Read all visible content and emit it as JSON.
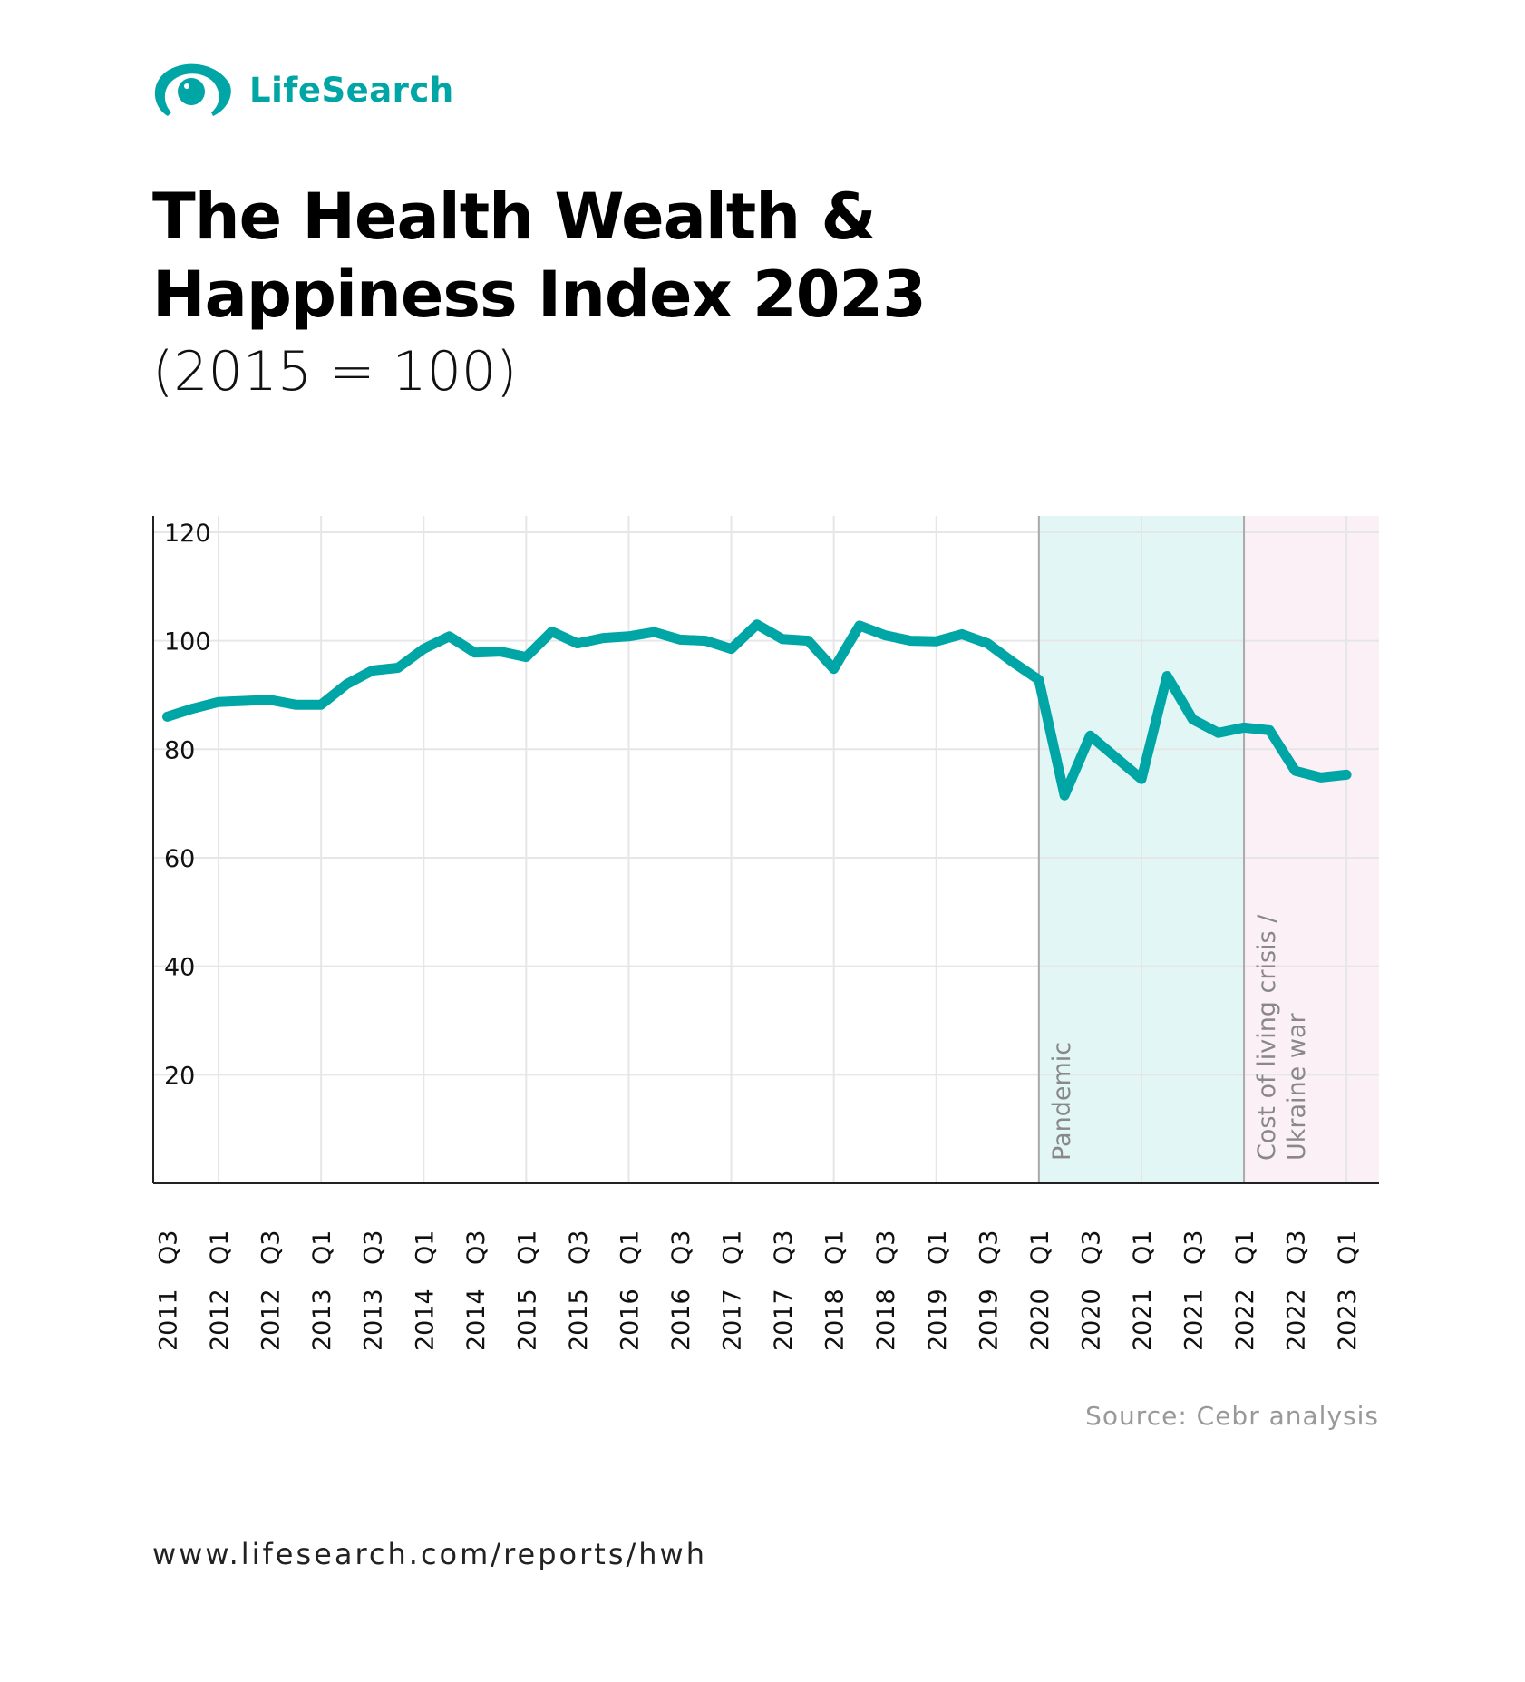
{
  "brand": {
    "name": "LifeSearch",
    "color": "#00a6a6",
    "icon": "eye-logo-icon"
  },
  "title_lines": [
    "The Health Wealth &",
    "Happiness Index 2023"
  ],
  "subtitle": "(2015 = 100)",
  "source": "Source: Cebr analysis",
  "url": "www.lifesearch.com/reports/hwh",
  "chart_data": {
    "type": "line",
    "title": "The Health Wealth & Happiness Index 2023",
    "subtitle": "(2015 = 100)",
    "xlabel": "",
    "ylabel": "",
    "ylim": [
      0,
      123
    ],
    "yticks": [
      20,
      40,
      60,
      80,
      100,
      120
    ],
    "grid": true,
    "line_color": "#00a6a6",
    "x": [
      "2011 Q3",
      "2011 Q4",
      "2012 Q1",
      "2012 Q2",
      "2012 Q3",
      "2012 Q4",
      "2013 Q1",
      "2013 Q2",
      "2013 Q3",
      "2013 Q4",
      "2014 Q1",
      "2014 Q2",
      "2014 Q3",
      "2014 Q4",
      "2015 Q1",
      "2015 Q2",
      "2015 Q3",
      "2015 Q4",
      "2016 Q1",
      "2016 Q2",
      "2016 Q3",
      "2016 Q4",
      "2017 Q1",
      "2017 Q2",
      "2017 Q3",
      "2017 Q4",
      "2018 Q1",
      "2018 Q2",
      "2018 Q3",
      "2018 Q4",
      "2019 Q1",
      "2019 Q2",
      "2019 Q3",
      "2019 Q4",
      "2020 Q1",
      "2020 Q2",
      "2020 Q3",
      "2020 Q4",
      "2021 Q1",
      "2021 Q2",
      "2021 Q3",
      "2021 Q4",
      "2022 Q1",
      "2022 Q2",
      "2022 Q3",
      "2022 Q4",
      "2023 Q1"
    ],
    "values": [
      86,
      87.5,
      88.7,
      88.9,
      89.1,
      88.2,
      88.2,
      92,
      94.5,
      95,
      98.5,
      100.8,
      97.8,
      98,
      97,
      101.7,
      99.5,
      100.5,
      100.8,
      101.6,
      100.2,
      100,
      98.5,
      103,
      100.3,
      100,
      94.8,
      102.8,
      101,
      100,
      99.9,
      101.2,
      99.5,
      96,
      92.8,
      71.5,
      82.5,
      78.5,
      74.5,
      93.5,
      85.5,
      83,
      84,
      83.5,
      76,
      74.8,
      75.3
    ],
    "tick_labels": [
      {
        "q": "Q3",
        "y": "2011"
      },
      {
        "q": "Q1",
        "y": "2012"
      },
      {
        "q": "Q3",
        "y": "2012"
      },
      {
        "q": "Q1",
        "y": "2013"
      },
      {
        "q": "Q3",
        "y": "2013"
      },
      {
        "q": "Q1",
        "y": "2014"
      },
      {
        "q": "Q3",
        "y": "2014"
      },
      {
        "q": "Q1",
        "y": "2015"
      },
      {
        "q": "Q3",
        "y": "2015"
      },
      {
        "q": "Q1",
        "y": "2016"
      },
      {
        "q": "Q3",
        "y": "2016"
      },
      {
        "q": "Q1",
        "y": "2017"
      },
      {
        "q": "Q3",
        "y": "2017"
      },
      {
        "q": "Q1",
        "y": "2018"
      },
      {
        "q": "Q3",
        "y": "2018"
      },
      {
        "q": "Q1",
        "y": "2019"
      },
      {
        "q": "Q3",
        "y": "2019"
      },
      {
        "q": "Q1",
        "y": "2020"
      },
      {
        "q": "Q3",
        "y": "2020"
      },
      {
        "q": "Q1",
        "y": "2021"
      },
      {
        "q": "Q3",
        "y": "2021"
      },
      {
        "q": "Q1",
        "y": "2022"
      },
      {
        "q": "Q3",
        "y": "2022"
      },
      {
        "q": "Q1",
        "y": "2023"
      }
    ],
    "bands": [
      {
        "from": "2020 Q1",
        "to": "2022 Q1",
        "label_lines": [
          "Pandemic"
        ],
        "color": "#e3f6f6"
      },
      {
        "from": "2022 Q1",
        "to": "end",
        "label_lines": [
          "Cost of living crisis /",
          "Ukraine war"
        ],
        "color": "#fbf0f5"
      }
    ]
  }
}
